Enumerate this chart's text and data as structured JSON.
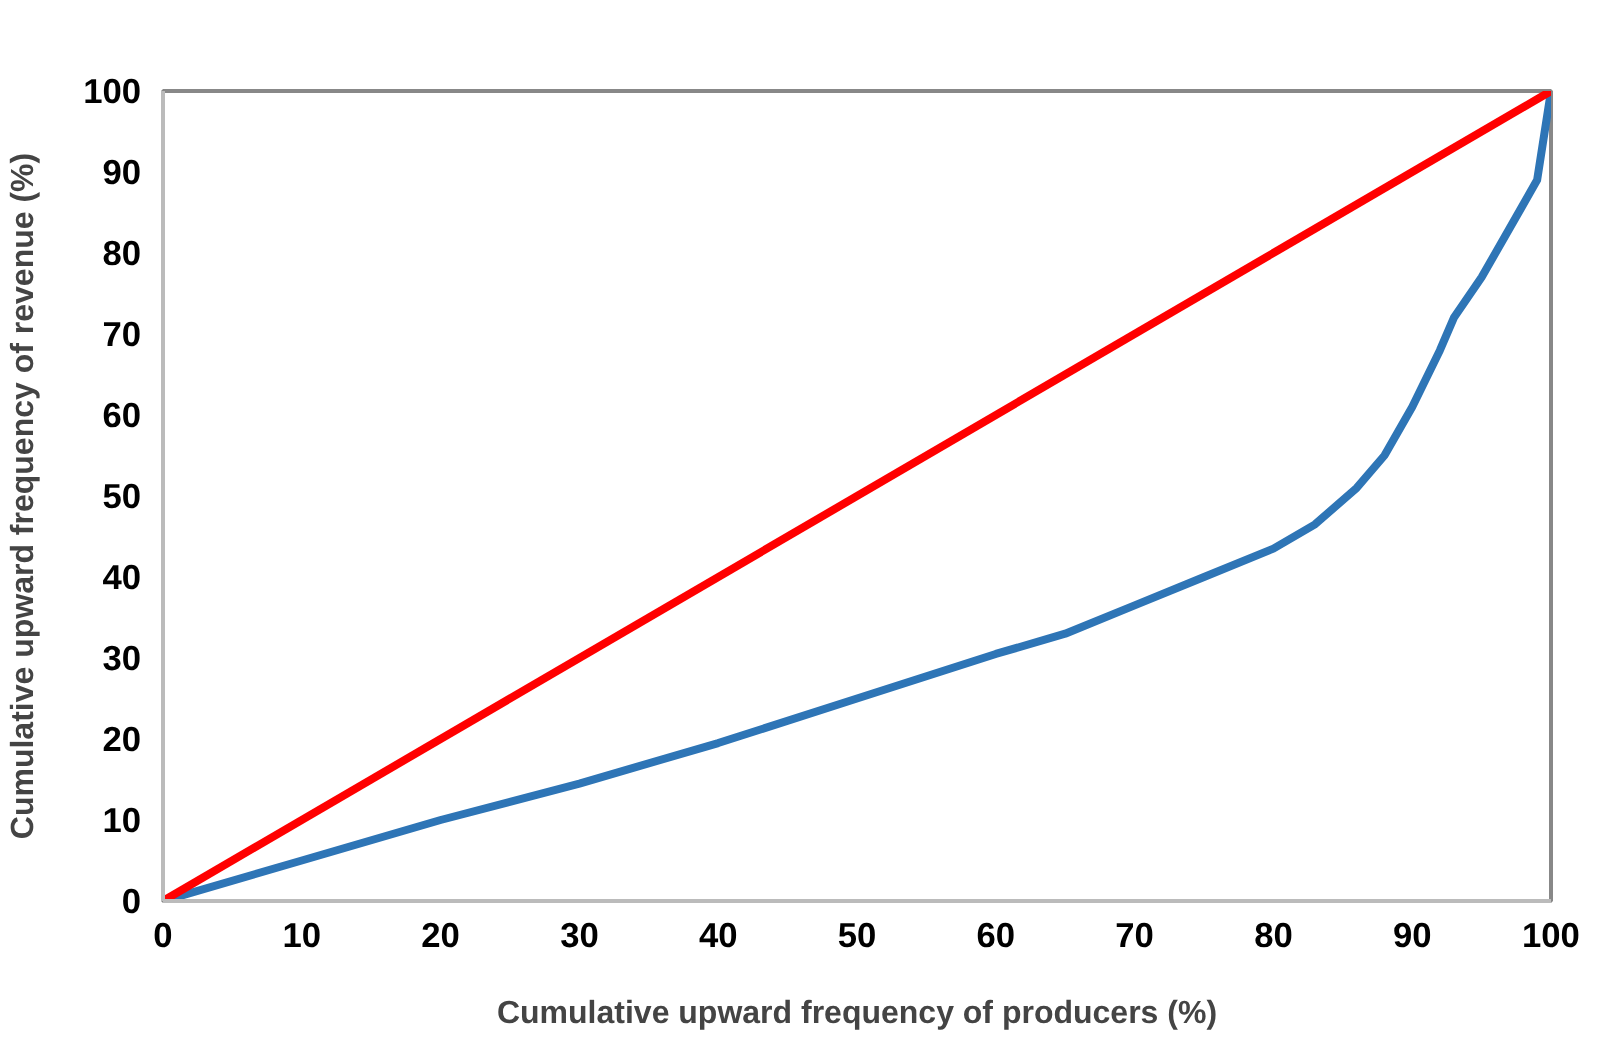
{
  "chart_data": {
    "type": "line",
    "xlabel": "Cumulative upward frequency of producers (%)",
    "ylabel": "Cumulative upward frequency of revenue (%)",
    "xlim": [
      0,
      100
    ],
    "ylim": [
      0,
      100
    ],
    "xticks": [
      0,
      10,
      20,
      30,
      40,
      50,
      60,
      70,
      80,
      90,
      100
    ],
    "yticks": [
      0,
      10,
      20,
      30,
      40,
      50,
      60,
      70,
      80,
      90,
      100
    ],
    "grid": false,
    "marker": "none",
    "line_style": "solid",
    "series": [
      {
        "color": "#2e75b6",
        "x": [
          0,
          10,
          20,
          30,
          40,
          50,
          60,
          65,
          70,
          75,
          80,
          83,
          86,
          88,
          90,
          92,
          93,
          95,
          97,
          99,
          100
        ],
        "values": [
          0,
          5,
          10,
          14.5,
          19.5,
          25,
          30.5,
          33,
          36.5,
          40,
          43.5,
          46.5,
          51,
          55,
          61,
          68,
          72,
          77,
          83,
          89,
          100
        ]
      },
      {
        "color": "#ff0000",
        "x": [
          0,
          100
        ],
        "values": [
          0,
          100
        ]
      }
    ]
  }
}
